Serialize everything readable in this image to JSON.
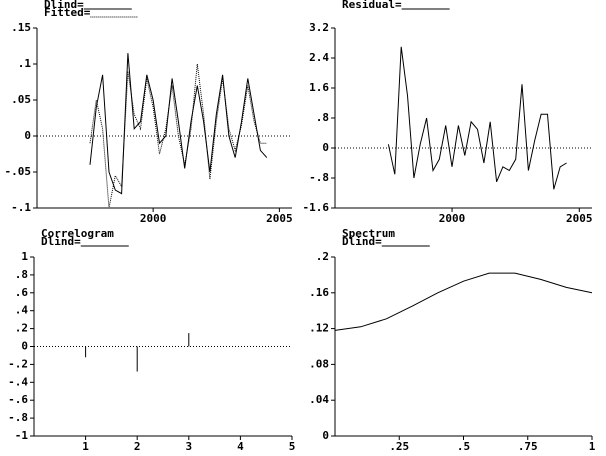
{
  "chart_data": [
    {
      "type": "line",
      "x": [
        1997.5,
        1997.75,
        1998,
        1998.25,
        1998.5,
        1998.75,
        1999,
        1999.25,
        1999.5,
        1999.75,
        2000,
        2000.25,
        2000.5,
        2000.75,
        2001,
        2001.25,
        2001.5,
        2001.75,
        2002,
        2002.25,
        2002.5,
        2002.75,
        2003,
        2003.25,
        2003.5,
        2003.75,
        2004,
        2004.25,
        2004.5
      ],
      "series": [
        {
          "name": "Dlind=",
          "color": "#000000",
          "dash": "solid",
          "values": [
            -0.04,
            0.04,
            0.085,
            -0.05,
            -0.075,
            -0.08,
            0.115,
            0.01,
            0.02,
            0.085,
            0.05,
            -0.01,
            0.0,
            0.08,
            0.02,
            -0.045,
            0.02,
            0.07,
            0.02,
            -0.05,
            0.03,
            0.085,
            0.0,
            -0.03,
            0.02,
            0.08,
            0.03,
            -0.02,
            -0.03
          ]
        },
        {
          "name": "Fitted=",
          "color": "#000000",
          "dash": "dotted",
          "values": [
            -0.01,
            0.05,
            0.01,
            -0.1,
            -0.055,
            -0.07,
            0.09,
            0.03,
            0.01,
            0.08,
            0.04,
            -0.025,
            0.01,
            0.07,
            0.0,
            -0.04,
            0.01,
            0.1,
            0.03,
            -0.06,
            0.02,
            0.08,
            0.01,
            -0.02,
            0.015,
            0.07,
            0.02,
            -0.01,
            -0.01
          ]
        }
      ],
      "xlim": [
        1995.4,
        2005.5
      ],
      "xticks": [
        2000,
        2005
      ],
      "ylim": [
        -0.1,
        0.15
      ],
      "yticks": [
        {
          "value": -0.1,
          "label": "-.1"
        },
        {
          "value": -0.05,
          "label": "-.05"
        },
        0,
        {
          "value": 0.05,
          "label": ".05"
        },
        {
          "value": 0.1,
          "label": ".1"
        },
        {
          "value": 0.15,
          "label": ".15"
        }
      ],
      "zero_line": true
    },
    {
      "type": "line",
      "x": [
        1997.5,
        1997.75,
        1998,
        1998.25,
        1998.5,
        1998.75,
        1999,
        1999.25,
        1999.5,
        1999.75,
        2000,
        2000.25,
        2000.5,
        2000.75,
        2001,
        2001.25,
        2001.5,
        2001.75,
        2002,
        2002.25,
        2002.5,
        2002.75,
        2003,
        2003.25,
        2003.5,
        2003.75,
        2004,
        2004.25,
        2004.5
      ],
      "series": [
        {
          "name": "Residual=",
          "color": "#000000",
          "dash": "solid",
          "values": [
            0.1,
            -0.7,
            2.7,
            1.4,
            -0.8,
            0.1,
            0.8,
            -0.6,
            -0.3,
            0.6,
            -0.5,
            0.6,
            -0.2,
            0.7,
            0.5,
            -0.4,
            0.7,
            -0.9,
            -0.5,
            -0.6,
            -0.3,
            1.7,
            -0.6,
            0.2,
            0.9,
            0.9,
            -1.1,
            -0.5,
            -0.4
          ]
        }
      ],
      "xlim": [
        1995.4,
        2005.5
      ],
      "xticks": [
        2000,
        2005
      ],
      "ylim": [
        -1.6,
        3.2
      ],
      "yticks": [
        -1.6,
        {
          "value": -0.8,
          "label": "-.8"
        },
        0,
        {
          "value": 0.8,
          "label": ".8"
        },
        1.6,
        2.4,
        3.2
      ],
      "zero_line": true
    },
    {
      "type": "bar",
      "title": "Correlogram",
      "x": [
        1,
        2,
        3
      ],
      "series": [
        {
          "name": "Dlind=",
          "color": "#000000",
          "values": [
            -0.12,
            -0.28,
            0.15
          ]
        }
      ],
      "xlim": [
        0,
        5
      ],
      "xticks": [
        1,
        2,
        3,
        4,
        5
      ],
      "ylim": [
        -1,
        1
      ],
      "yticks": [
        -1,
        {
          "value": -0.8,
          "label": "-.8"
        },
        {
          "value": -0.6,
          "label": "-.6"
        },
        {
          "value": -0.4,
          "label": "-.4"
        },
        {
          "value": -0.2,
          "label": "-.2"
        },
        0,
        {
          "value": 0.2,
          "label": ".2"
        },
        {
          "value": 0.4,
          "label": ".4"
        },
        {
          "value": 0.6,
          "label": ".6"
        },
        {
          "value": 0.8,
          "label": ".8"
        },
        1
      ],
      "zero_line": true
    },
    {
      "type": "line",
      "title": "Spectrum",
      "x": [
        0,
        0.1,
        0.2,
        0.3,
        0.4,
        0.5,
        0.6,
        0.7,
        0.8,
        0.9,
        1
      ],
      "series": [
        {
          "name": "Dlind=",
          "color": "#000000",
          "dash": "solid",
          "values": [
            0.118,
            0.122,
            0.131,
            0.145,
            0.16,
            0.173,
            0.182,
            0.182,
            0.175,
            0.166,
            0.16
          ]
        }
      ],
      "xlim": [
        0,
        1
      ],
      "xticks": [
        {
          "value": 0.25,
          "label": ".25"
        },
        {
          "value": 0.5,
          "label": ".5"
        },
        {
          "value": 0.75,
          "label": ".75"
        },
        1
      ],
      "ylim": [
        0,
        0.2
      ],
      "yticks": [
        0,
        {
          "value": 0.04,
          "label": ".04"
        },
        {
          "value": 0.08,
          "label": ".08"
        },
        {
          "value": 0.12,
          "label": ".12"
        },
        {
          "value": 0.16,
          "label": ".16"
        },
        {
          "value": 0.2,
          "label": ".2"
        }
      ],
      "zero_line": false
    }
  ]
}
